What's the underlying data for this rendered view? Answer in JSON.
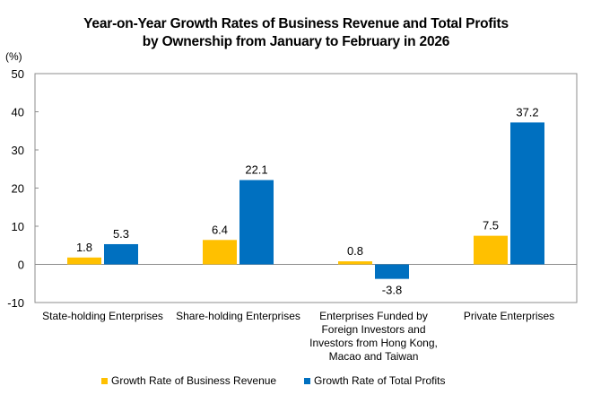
{
  "chart_data": {
    "type": "bar",
    "title_line1": "Year-on-Year Growth Rates of Business Revenue and Total Profits",
    "title_line2": "by Ownership from January to February in 2026",
    "ylabel": "(%)",
    "xlabel": "",
    "ylim": [
      -10,
      50
    ],
    "yticks": [
      50,
      40,
      30,
      20,
      10,
      0,
      -10
    ],
    "grid": false,
    "legend_position": "bottom",
    "categories": [
      "State-holding Enterprises",
      "Share-holding Enterprises",
      "Enterprises Funded by Foreign Investors and Investors from Hong Kong, Macao and Taiwan",
      "Private Enterprises"
    ],
    "category_lines": [
      [
        "State-holding Enterprises"
      ],
      [
        "Share-holding Enterprises"
      ],
      [
        "Enterprises Funded by",
        "Foreign Investors and",
        "Investors from Hong Kong,",
        "Macao and Taiwan"
      ],
      [
        "Private Enterprises"
      ]
    ],
    "series": [
      {
        "name": "Growth Rate of Business Revenue",
        "color": "#FFC000",
        "values": [
          1.8,
          6.4,
          0.8,
          7.5
        ],
        "labels": [
          "1.8",
          "6.4",
          "0.8",
          "7.5"
        ]
      },
      {
        "name": "Growth Rate of Total Profits",
        "color": "#0070C0",
        "values": [
          5.3,
          22.1,
          -3.8,
          37.2
        ],
        "labels": [
          "5.3",
          "22.1",
          "-3.8",
          "37.2"
        ]
      }
    ]
  }
}
